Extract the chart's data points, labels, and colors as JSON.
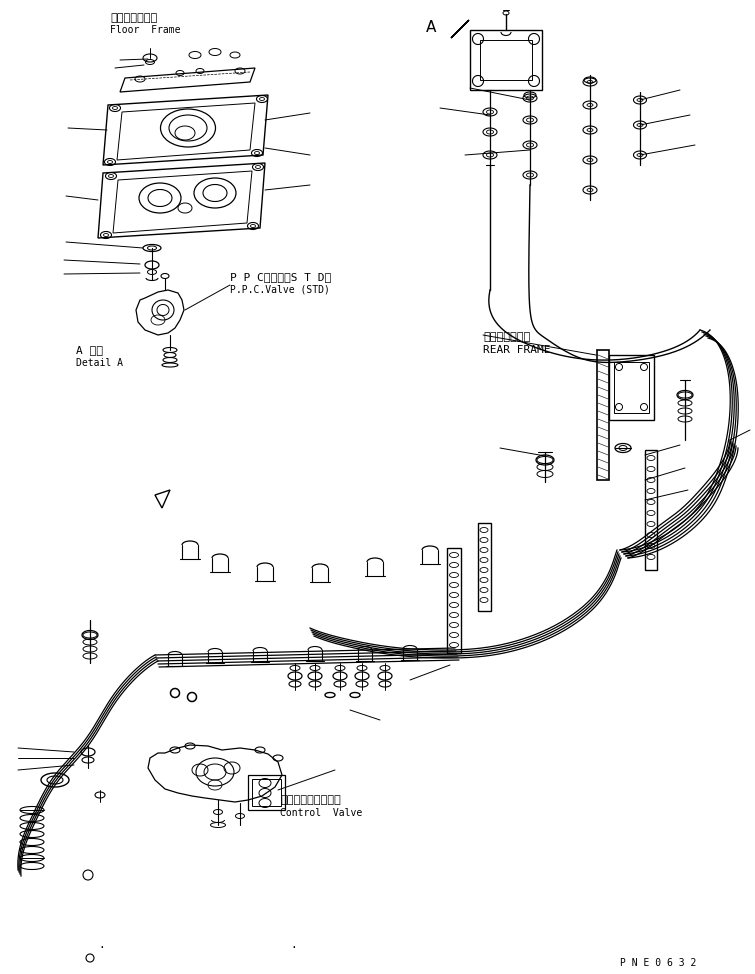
{
  "background_color": "#ffffff",
  "line_color": "#000000",
  "part_code": "P N E 0 6 3 2",
  "labels": {
    "floor_frame_jp": "フロアフレーム",
    "floor_frame_en": "Floor  Frame",
    "ppc_valve_jp": "P P Cバルブ（S T D）",
    "ppc_valve_en": "P.P.C.Valve (STD)",
    "detail_a_jp": "A 詳細",
    "detail_a_en": "Detail A",
    "rear_frame_jp": "リヤーフレーム",
    "rear_frame_en": "REAR FRAME",
    "control_valve_jp": "コントロールバルブ",
    "control_valve_en": "Control  Valve",
    "label_A": "A"
  },
  "figsize": [
    7.55,
    9.74
  ],
  "dpi": 100
}
